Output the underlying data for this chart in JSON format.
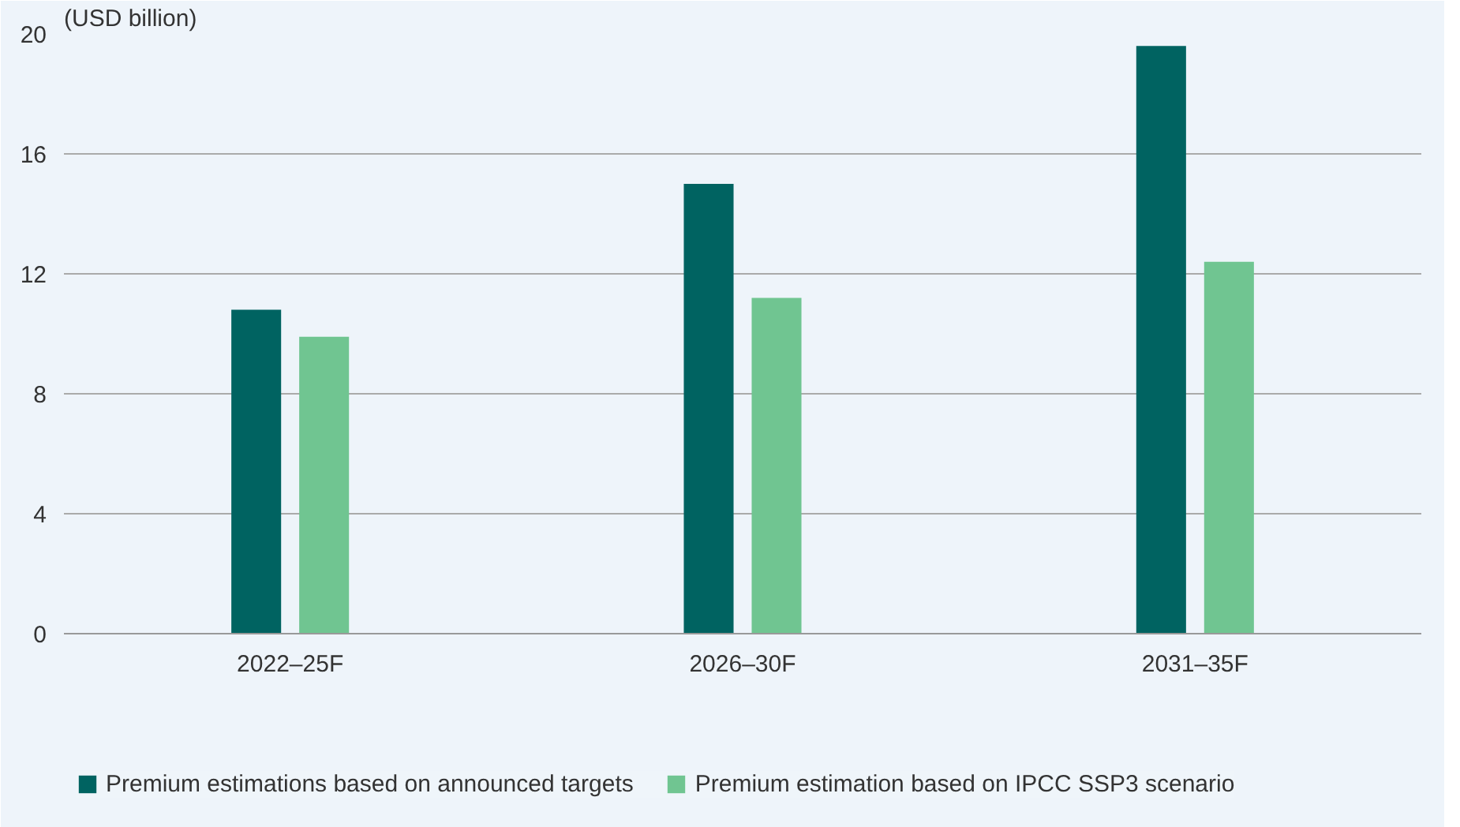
{
  "chart_data": {
    "type": "bar",
    "ylabel": "(USD billion)",
    "categories": [
      "2022–25F",
      "2026–30F",
      "2031–35F"
    ],
    "series": [
      {
        "name": "Premium estimations based on announced targets",
        "color": "#006361",
        "values": [
          10.8,
          15.0,
          19.6
        ]
      },
      {
        "name": "Premium estimation based on IPCC SSP3 scenario",
        "color": "#70c591",
        "values": [
          9.9,
          11.2,
          12.4
        ]
      }
    ],
    "ylim": [
      0,
      20
    ],
    "yticks": [
      0,
      4,
      8,
      12,
      16,
      20
    ],
    "grid": "y",
    "legend": "bottom"
  }
}
